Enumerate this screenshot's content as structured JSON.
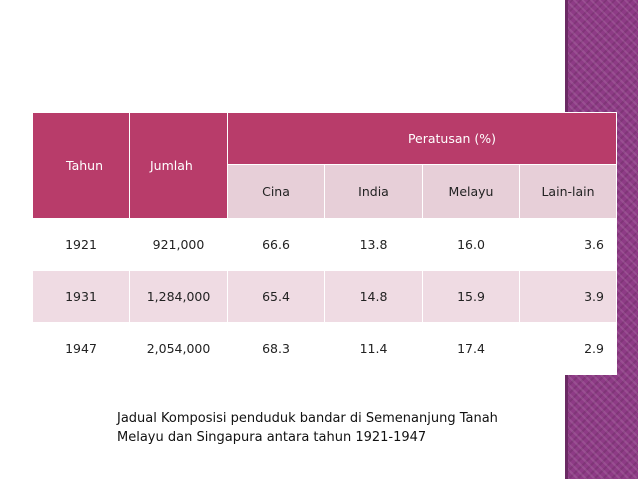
{
  "table": {
    "header": {
      "tahun": "Tahun",
      "jumlah": "Jumlah",
      "peratusan": "Peratusan (%)",
      "sub": [
        "Cina",
        "India",
        "Melayu",
        "Lain-lain"
      ]
    },
    "rows": [
      [
        "1921",
        "921,000",
        "66.6",
        "13.8",
        "16.0",
        "3.6"
      ],
      [
        "1931",
        "1,284,000",
        "65.4",
        "14.8",
        "15.9",
        "3.9"
      ],
      [
        "1947",
        "2,054,000",
        "68.3",
        "11.4",
        "17.4",
        "2.9"
      ]
    ]
  },
  "caption": {
    "line1": "Jadual Komposisi penduduk bandar di Semenanjung Tanah",
    "line2": "Melayu dan Singapura antara tahun 1921-1947"
  },
  "colors": {
    "header_dark": "#b83c6a",
    "header_light": "#e7cfd8",
    "row_alt": "#efdbe3",
    "side_strip": "#8e3b86"
  }
}
